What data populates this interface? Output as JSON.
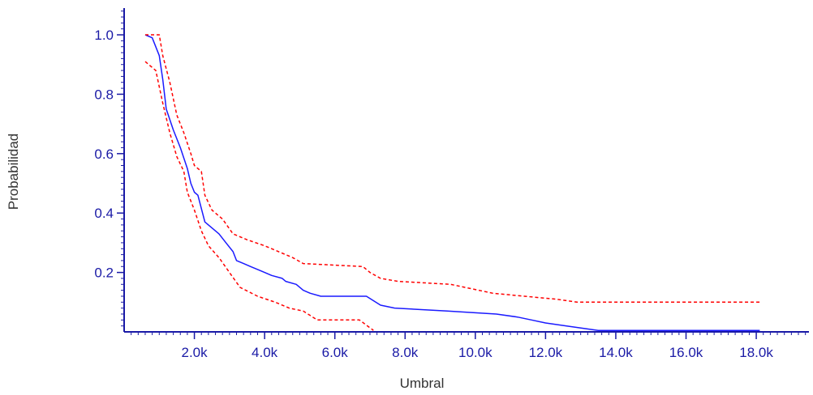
{
  "chart_data": {
    "type": "line",
    "title": "",
    "xlabel": "Umbral",
    "ylabel": "Probabilidad",
    "xlim": [
      0,
      19500
    ],
    "ylim": [
      0,
      1.09
    ],
    "x_tick_labels": [
      "2.0k",
      "4.0k",
      "6.0k",
      "8.0k",
      "10.0k",
      "12.0k",
      "14.0k",
      "16.0k",
      "18.0k"
    ],
    "x_tick_values": [
      2000,
      4000,
      6000,
      8000,
      10000,
      12000,
      14000,
      16000,
      18000
    ],
    "y_tick_labels": [
      "0.2",
      "0.4",
      "0.6",
      "0.8",
      "1.0"
    ],
    "y_tick_values": [
      0.2,
      0.4,
      0.6,
      0.8,
      1.0
    ],
    "grid": false,
    "legend": "none",
    "colors": {
      "axis": "#1a1aa6",
      "estimate": "#1a1aff",
      "bounds": "#ff0000"
    },
    "series": [
      {
        "style": "solid",
        "points": [
          [
            600,
            1.0
          ],
          [
            800,
            0.99
          ],
          [
            1000,
            0.93
          ],
          [
            1100,
            0.85
          ],
          [
            1200,
            0.75
          ],
          [
            1400,
            0.68
          ],
          [
            1600,
            0.62
          ],
          [
            1800,
            0.55
          ],
          [
            1900,
            0.5
          ],
          [
            2000,
            0.47
          ],
          [
            2100,
            0.46
          ],
          [
            2300,
            0.37
          ],
          [
            2500,
            0.35
          ],
          [
            2700,
            0.33
          ],
          [
            2900,
            0.3
          ],
          [
            3100,
            0.27
          ],
          [
            3200,
            0.24
          ],
          [
            3400,
            0.23
          ],
          [
            3600,
            0.22
          ],
          [
            3800,
            0.21
          ],
          [
            4000,
            0.2
          ],
          [
            4200,
            0.19
          ],
          [
            4500,
            0.18
          ],
          [
            4600,
            0.17
          ],
          [
            4900,
            0.16
          ],
          [
            5100,
            0.14
          ],
          [
            5300,
            0.13
          ],
          [
            5600,
            0.12
          ],
          [
            6900,
            0.12
          ],
          [
            7300,
            0.09
          ],
          [
            7700,
            0.08
          ],
          [
            9200,
            0.07
          ],
          [
            10600,
            0.06
          ],
          [
            11200,
            0.05
          ],
          [
            11600,
            0.04
          ],
          [
            12000,
            0.03
          ],
          [
            12600,
            0.02
          ],
          [
            13500,
            0.005
          ],
          [
            18100,
            0.005
          ]
        ]
      },
      {
        "style": "dashed",
        "points": [
          [
            600,
            1.0
          ],
          [
            1000,
            1.0
          ],
          [
            1100,
            0.93
          ],
          [
            1300,
            0.84
          ],
          [
            1500,
            0.73
          ],
          [
            1700,
            0.67
          ],
          [
            1900,
            0.6
          ],
          [
            2000,
            0.56
          ],
          [
            2200,
            0.54
          ],
          [
            2300,
            0.46
          ],
          [
            2500,
            0.41
          ],
          [
            2800,
            0.38
          ],
          [
            3100,
            0.33
          ],
          [
            3500,
            0.31
          ],
          [
            4000,
            0.29
          ],
          [
            4400,
            0.27
          ],
          [
            4800,
            0.25
          ],
          [
            5100,
            0.23
          ],
          [
            6800,
            0.22
          ],
          [
            7000,
            0.2
          ],
          [
            7300,
            0.18
          ],
          [
            7800,
            0.17
          ],
          [
            9300,
            0.16
          ],
          [
            10500,
            0.13
          ],
          [
            11400,
            0.12
          ],
          [
            12300,
            0.11
          ],
          [
            12900,
            0.1
          ],
          [
            18100,
            0.1
          ]
        ]
      },
      {
        "style": "dashed",
        "points": [
          [
            600,
            0.91
          ],
          [
            900,
            0.88
          ],
          [
            1100,
            0.77
          ],
          [
            1300,
            0.67
          ],
          [
            1500,
            0.59
          ],
          [
            1700,
            0.54
          ],
          [
            1800,
            0.47
          ],
          [
            2000,
            0.41
          ],
          [
            2200,
            0.34
          ],
          [
            2400,
            0.29
          ],
          [
            2700,
            0.25
          ],
          [
            3000,
            0.2
          ],
          [
            3300,
            0.15
          ],
          [
            3800,
            0.12
          ],
          [
            4300,
            0.1
          ],
          [
            4700,
            0.08
          ],
          [
            5100,
            0.07
          ],
          [
            5500,
            0.04
          ],
          [
            6700,
            0.04
          ],
          [
            7100,
            0.005
          ]
        ]
      }
    ]
  }
}
